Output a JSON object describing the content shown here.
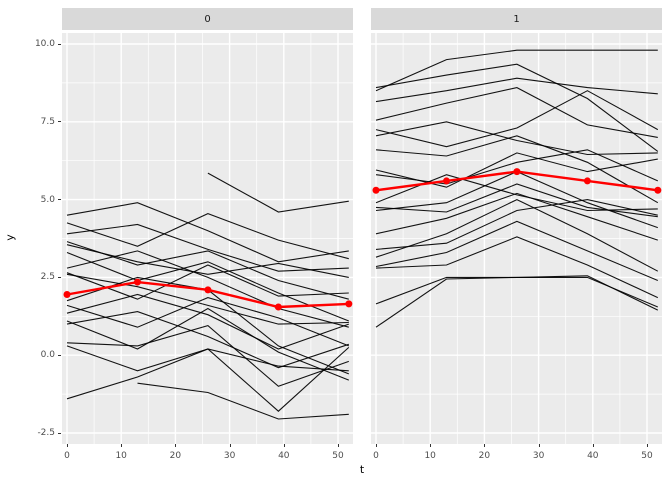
{
  "figure": {
    "xlabel": "t",
    "ylabel": "y",
    "background": "#FFFFFF",
    "panel_background": "#EBEBEB",
    "strip_background": "#D9D9D9",
    "gridline_color": "#FFFFFF",
    "tick_label_color": "#4D4D4D",
    "mean_line_color": "#FF0000",
    "subject_line_color": "#000000"
  },
  "chart_data": {
    "type": "line",
    "title": "",
    "xlabel": "t",
    "ylabel": "y",
    "grid": true,
    "legend": false,
    "x": [
      0,
      13,
      26,
      39,
      52
    ],
    "x_ticks": [
      0,
      10,
      20,
      30,
      40,
      50
    ],
    "y_ticks": [
      10.0,
      7.5,
      5.0,
      2.5,
      0.0,
      -2.5
    ],
    "x_tick_labels": [
      "0",
      "10",
      "20",
      "30",
      "40",
      "50"
    ],
    "y_tick_labels": [
      "10.0",
      "7.5",
      "5.0",
      "2.5",
      "0.0",
      "-2.5"
    ],
    "xlim": [
      -2.6,
      54.6
    ],
    "ylim": [
      -2.85,
      10.35
    ],
    "facets": [
      {
        "label": "0",
        "mean": [
          1.95,
          2.35,
          2.1,
          1.55,
          1.65
        ],
        "subjects": [
          [
            4.5,
            4.9,
            4.0,
            3.0,
            3.35
          ],
          [
            4.25,
            3.5,
            4.55,
            3.7,
            3.1
          ],
          [
            3.9,
            4.2,
            3.4,
            2.7,
            2.8
          ],
          [
            3.65,
            2.9,
            3.35,
            2.4,
            1.8
          ],
          [
            3.55,
            3.0,
            2.6,
            2.95,
            2.5
          ],
          [
            3.3,
            2.4,
            3.0,
            2.0,
            1.1
          ],
          [
            2.8,
            3.35,
            2.5,
            1.5,
            0.9
          ],
          [
            2.65,
            1.8,
            2.9,
            1.9,
            2.0
          ],
          [
            2.6,
            2.2,
            1.6,
            1.0,
            1.05
          ],
          [
            1.75,
            2.5,
            2.1,
            0.3,
            -0.6
          ],
          [
            1.6,
            0.9,
            1.85,
            1.2,
            0.3
          ],
          [
            1.35,
            1.95,
            1.3,
            0.2,
            1.0
          ],
          [
            1.1,
            0.2,
            1.5,
            0.1,
            -0.8
          ],
          [
            1.0,
            1.4,
            0.6,
            -0.4,
            0.35
          ],
          [
            0.4,
            0.3,
            0.95,
            -1.0,
            -0.2
          ],
          [
            0.3,
            -0.5,
            0.2,
            -1.8,
            0.25
          ],
          [
            -1.4,
            -0.7,
            0.2,
            -0.35,
            -0.5
          ],
          [
            null,
            -0.9,
            -1.2,
            -2.05,
            -1.9
          ],
          [
            null,
            null,
            5.85,
            4.6,
            4.95
          ]
        ]
      },
      {
        "label": "1",
        "mean": [
          5.3,
          5.6,
          5.9,
          5.6,
          5.3
        ],
        "subjects": [
          [
            8.5,
            9.5,
            9.8,
            9.8,
            9.8
          ],
          [
            8.6,
            9.0,
            9.35,
            8.25,
            6.55
          ],
          [
            8.15,
            8.5,
            8.9,
            8.6,
            8.4
          ],
          [
            7.55,
            8.1,
            8.6,
            7.4,
            7.0
          ],
          [
            7.25,
            6.7,
            7.3,
            8.5,
            7.25
          ],
          [
            7.05,
            7.5,
            6.9,
            6.45,
            6.5
          ],
          [
            6.6,
            6.4,
            7.05,
            6.2,
            4.9
          ],
          [
            5.95,
            5.4,
            6.5,
            5.9,
            6.3
          ],
          [
            5.8,
            5.5,
            6.2,
            6.6,
            5.6
          ],
          [
            4.9,
            5.8,
            5.15,
            4.65,
            4.7
          ],
          [
            4.75,
            4.6,
            5.5,
            4.75,
            4.45
          ],
          [
            4.65,
            4.9,
            5.9,
            4.9,
            4.1
          ],
          [
            3.9,
            4.4,
            5.2,
            4.45,
            3.7
          ],
          [
            3.4,
            3.6,
            4.65,
            5.0,
            4.5
          ],
          [
            3.15,
            3.9,
            5.0,
            3.9,
            2.7
          ],
          [
            2.85,
            3.3,
            4.3,
            3.35,
            2.4
          ],
          [
            2.8,
            2.9,
            3.8,
            2.9,
            1.85
          ],
          [
            1.65,
            2.5,
            2.5,
            2.55,
            1.45
          ],
          [
            0.9,
            2.45,
            2.5,
            2.5,
            1.55
          ]
        ]
      }
    ]
  }
}
